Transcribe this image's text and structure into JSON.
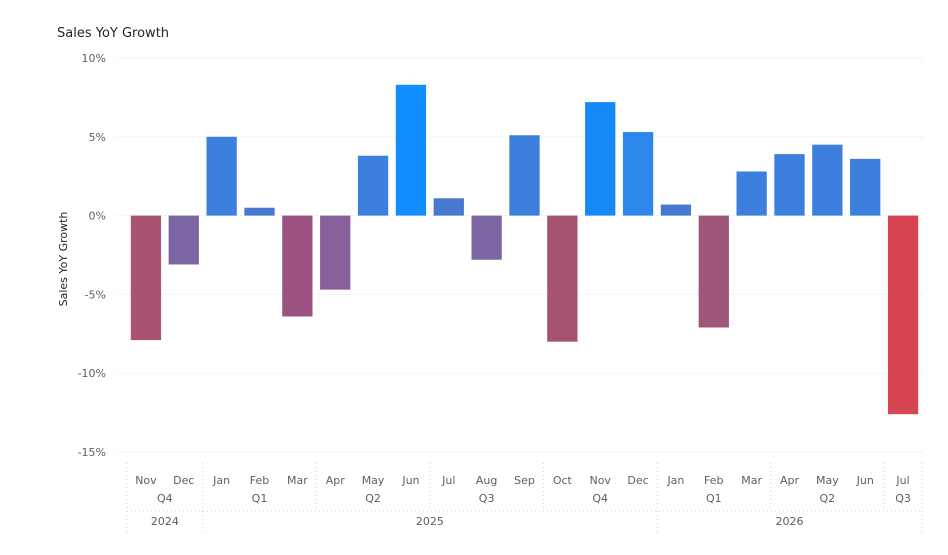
{
  "chart_data": {
    "type": "bar",
    "title": "Sales YoY Growth",
    "ylabel": "Sales YoY Growth",
    "xlabel": "",
    "ylim": [
      -15,
      10
    ],
    "yticks": [
      "10%",
      "5%",
      "0%",
      "-5%",
      "-10%",
      "-15%"
    ],
    "ytick_values": [
      10,
      5,
      0,
      -5,
      -10,
      -15
    ],
    "grid": true,
    "categories": [
      "Nov",
      "Dec",
      "Jan",
      "Feb",
      "Mar",
      "Apr",
      "May",
      "Jun",
      "Jul",
      "Aug",
      "Sep",
      "Oct",
      "Nov",
      "Dec",
      "Jan",
      "Feb",
      "Mar",
      "Apr",
      "May",
      "Jun",
      "Jul"
    ],
    "values": [
      -7.9,
      -3.1,
      5.0,
      0.5,
      -6.4,
      -4.7,
      3.8,
      8.3,
      1.1,
      -2.8,
      5.1,
      -8.0,
      7.2,
      5.3,
      0.7,
      -7.1,
      2.8,
      3.9,
      4.5,
      3.6,
      -12.6
    ],
    "colors": [
      "#a85374",
      "#7b65a3",
      "#3c7fdd",
      "#4878cf",
      "#9b5280",
      "#88619a",
      "#3c7fdd",
      "#118dff",
      "#4878cf",
      "#7b65a3",
      "#3c7fdd",
      "#a55172",
      "#1589f7",
      "#2d86eb",
      "#4878cf",
      "#a05678",
      "#3c7fdd",
      "#3c7fdd",
      "#3c7fdd",
      "#3c7fdd",
      "#d64550"
    ],
    "quarters": [
      {
        "label": "Q4",
        "start": 0,
        "end": 1
      },
      {
        "label": "Q1",
        "start": 2,
        "end": 4
      },
      {
        "label": "Q2",
        "start": 5,
        "end": 7
      },
      {
        "label": "Q3",
        "start": 8,
        "end": 10
      },
      {
        "label": "Q4",
        "start": 11,
        "end": 13
      },
      {
        "label": "Q1",
        "start": 14,
        "end": 16
      },
      {
        "label": "Q2",
        "start": 17,
        "end": 19
      },
      {
        "label": "Q3",
        "start": 20,
        "end": 20
      }
    ],
    "years": [
      {
        "label": "2024",
        "start": 0,
        "end": 1
      },
      {
        "label": "2025",
        "start": 2,
        "end": 13
      },
      {
        "label": "2026",
        "start": 14,
        "end": 20
      }
    ]
  }
}
